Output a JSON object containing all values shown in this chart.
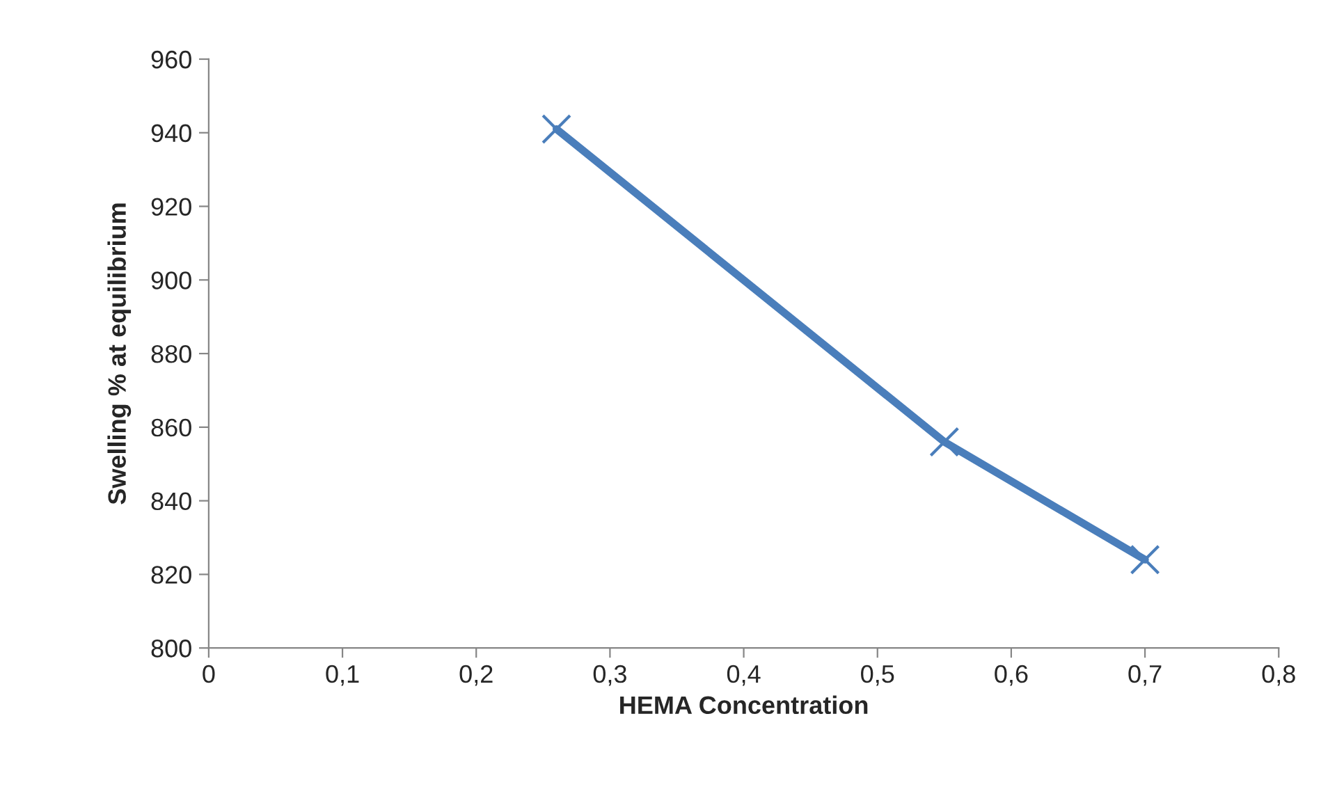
{
  "chart_data": {
    "type": "line",
    "xlabel": "HEMA Concentration",
    "ylabel": "Swelling % at equilibrium",
    "x": [
      0.26,
      0.55,
      0.7
    ],
    "series": [
      {
        "color": "#4a7ebb",
        "values": [
          941,
          856,
          824
        ]
      }
    ],
    "marker": "cross",
    "line_style": "solid",
    "xlim": [
      0,
      0.8
    ],
    "xticks": [
      0,
      {
        "value": 0.1,
        "label": "0,1"
      },
      {
        "value": 0.2,
        "label": "0,2"
      },
      {
        "value": 0.3,
        "label": "0,3"
      },
      {
        "value": 0.4,
        "label": "0,4"
      },
      {
        "value": 0.5,
        "label": "0,5"
      },
      {
        "value": 0.6,
        "label": "0,6"
      },
      {
        "value": 0.7,
        "label": "0,7"
      },
      {
        "value": 0.8,
        "label": "0,8"
      }
    ],
    "ylim": [
      800,
      960
    ],
    "yticks": [
      800,
      820,
      840,
      860,
      880,
      900,
      920,
      940,
      960
    ],
    "grid": false
  }
}
